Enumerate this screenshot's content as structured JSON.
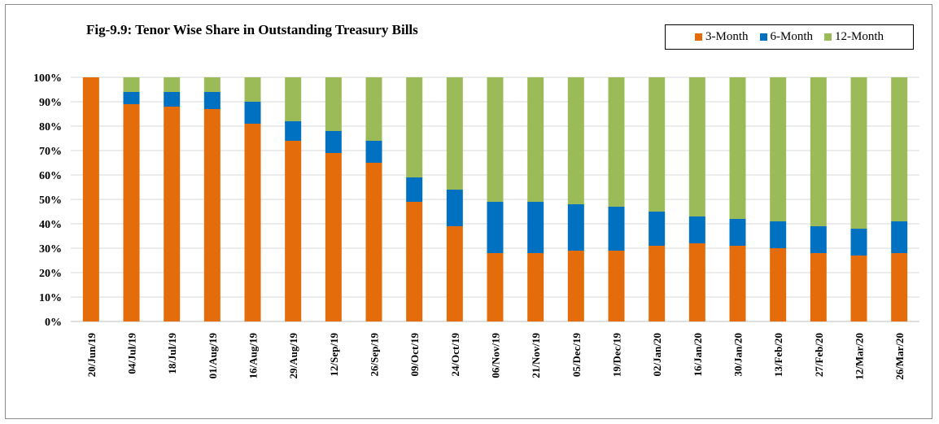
{
  "chart_data": {
    "type": "bar",
    "stacked": true,
    "percent": true,
    "title": "Fig-9.9: Tenor Wise Share in Outstanding Treasury Bills",
    "xlabel": "",
    "ylabel": "",
    "ylim": [
      0,
      100
    ],
    "yticks": [
      "0%",
      "10%",
      "20%",
      "30%",
      "40%",
      "50%",
      "60%",
      "70%",
      "80%",
      "90%",
      "100%"
    ],
    "grid": true,
    "legend_position": "top-right",
    "categories": [
      "20/Jun/19",
      "04/Jul/19",
      "18/Jul/19",
      "01/Aug/19",
      "16/Aug/19",
      "29/Aug/19",
      "12/Sep/19",
      "26/Sep/19",
      "09/Oct/19",
      "24/Oct/19",
      "06/Nov/19",
      "21/Nov/19",
      "05/Dec/19",
      "19/Dec/19",
      "02/Jan/20",
      "16/Jan/20",
      "30/Jan/20",
      "13/Feb/20",
      "27/Feb/20",
      "12/Mar/20",
      "26/Mar/20"
    ],
    "series": [
      {
        "name": "3-Month",
        "color": "#E46C0A",
        "values": [
          100,
          89,
          88,
          87,
          81,
          74,
          69,
          65,
          49,
          39,
          28,
          28,
          29,
          29,
          31,
          32,
          31,
          30,
          28,
          27,
          28
        ]
      },
      {
        "name": "6-Month",
        "color": "#0070C0",
        "values": [
          0,
          5,
          6,
          7,
          9,
          8,
          9,
          9,
          10,
          15,
          21,
          21,
          19,
          18,
          14,
          11,
          11,
          11,
          11,
          11,
          13
        ]
      },
      {
        "name": "12-Month",
        "color": "#9BBB59",
        "values": [
          0,
          6,
          6,
          6,
          10,
          18,
          22,
          26,
          41,
          46,
          51,
          51,
          52,
          53,
          55,
          57,
          58,
          59,
          61,
          62,
          59
        ]
      }
    ]
  }
}
